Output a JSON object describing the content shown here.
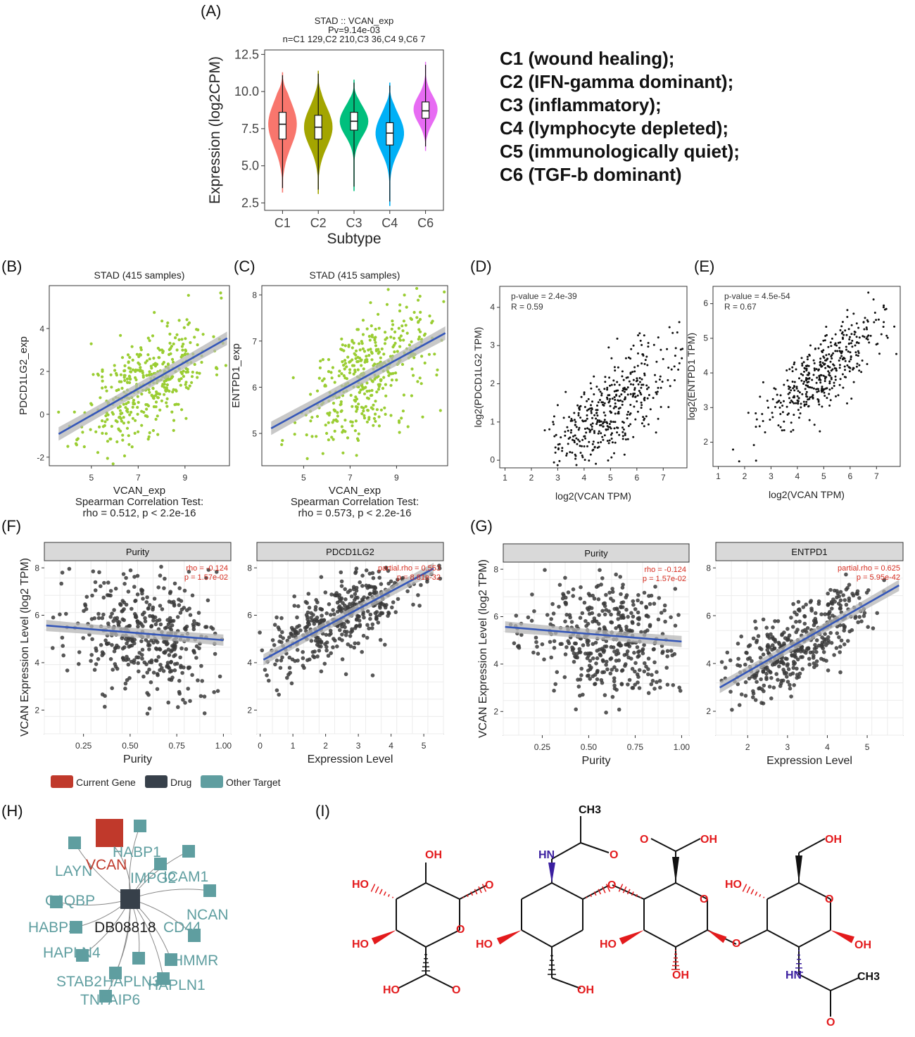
{
  "colors": {
    "violin": [
      "#f8766d",
      "#a3a500",
      "#00bf7d",
      "#00b0f6",
      "#e76bf3"
    ],
    "scatter_green": "#9acd32",
    "fit_line": "#3557b8",
    "ci_band": "#b5b5b5",
    "gray_point": "#3a3a3a",
    "network_current_gene": "#c0392b",
    "network_drug": "#37404a",
    "network_other": "#5f9ea0",
    "chem_red": "#e31a1c",
    "chem_blue": "#3b1fa0"
  },
  "panel_labels": [
    "(A)",
    "(B)",
    "(C)",
    "(D)",
    "(E)",
    "(F)",
    "(G)",
    "(H)",
    "(I)"
  ],
  "subtype_legend": [
    "C1 (wound healing);",
    "C2 (IFN-gamma dominant);",
    "C3 (inflammatory);",
    "C4 (lymphocyte depleted);",
    "C5 (immunologically quiet);",
    "C6 (TGF-b dominant)"
  ],
  "chart_data": [
    {
      "id": "A",
      "type": "violin",
      "title": "STAD :: VCAN_exp",
      "subtitle": [
        "Pv=9.14e-03",
        "n=C1 129,C2 210,C3 36,C4 9,C6 7"
      ],
      "xlabel": "Subtype",
      "ylabel": "Expression (log2CPM)",
      "categories": [
        "C1",
        "C2",
        "C3",
        "C4",
        "C6"
      ],
      "ylim": [
        2.0,
        12.8
      ],
      "yticks": [
        "2.5",
        "5.0",
        "7.5",
        "10.0",
        "12.5"
      ],
      "violins": [
        {
          "min": 3.2,
          "q1": 6.8,
          "median": 7.8,
          "q3": 8.6,
          "max": 11.3,
          "mode": 7.8,
          "width": 0.95
        },
        {
          "min": 3.1,
          "q1": 6.8,
          "median": 7.6,
          "q3": 8.4,
          "max": 11.4,
          "mode": 7.6,
          "width": 0.95
        },
        {
          "min": 3.3,
          "q1": 7.4,
          "median": 8.0,
          "q3": 8.6,
          "max": 10.8,
          "mode": 8.0,
          "width": 0.95
        },
        {
          "min": 2.3,
          "q1": 6.4,
          "median": 7.2,
          "q3": 7.9,
          "max": 10.6,
          "mode": 7.2,
          "width": 0.95
        },
        {
          "min": 6.0,
          "q1": 8.2,
          "median": 8.7,
          "q3": 9.3,
          "max": 12.0,
          "mode": 8.8,
          "width": 0.8
        }
      ]
    },
    {
      "id": "B",
      "type": "scatter",
      "title": "STAD (415 samples)",
      "xlabel": "VCAN_exp",
      "ylabel": "PDCD1LG2_exp",
      "stat_lines": [
        "Spearman Correlation Test:",
        "rho = 0.512, p < 2.2e-16"
      ],
      "xlim": [
        3.2,
        10.9
      ],
      "ylim": [
        -2.4,
        6.0
      ],
      "xticks": [
        "5",
        "7",
        "9"
      ],
      "yticks": [
        "-2",
        "0",
        "2",
        "4"
      ],
      "n": 415,
      "fit": {
        "x0": 3.6,
        "x1": 10.8,
        "slope": 0.62,
        "intercept": -3.15
      },
      "correlation": 0.512
    },
    {
      "id": "C",
      "type": "scatter",
      "title": "STAD (415 samples)",
      "xlabel": "VCAN_exp",
      "ylabel": "ENTPD1_exp",
      "stat_lines": [
        "Spearman Correlation Test:",
        "rho = 0.573, p < 2.2e-16"
      ],
      "xlim": [
        3.2,
        11.2
      ],
      "ylim": [
        4.3,
        8.2
      ],
      "xticks": [
        "5",
        "7",
        "9"
      ],
      "yticks": [
        "5",
        "6",
        "7",
        "8"
      ],
      "n": 415,
      "fit": {
        "x0": 3.6,
        "x1": 11.1,
        "slope": 0.275,
        "intercept": 4.12
      },
      "correlation": 0.573
    },
    {
      "id": "D",
      "type": "scatter",
      "title": "",
      "xlabel": "log2(VCAN TPM)",
      "ylabel": "log2(PDCD1LG2 TPM)",
      "annotations": [
        "p-value = 2.4e-39",
        "R = 0.59"
      ],
      "xlim": [
        0.8,
        7.9
      ],
      "ylim": [
        -0.2,
        4.55
      ],
      "xticks": [
        "1",
        "2",
        "3",
        "4",
        "5",
        "6",
        "7"
      ],
      "yticks": [
        "0",
        "1",
        "2",
        "3",
        "4"
      ],
      "n": 415,
      "correlation": 0.59
    },
    {
      "id": "E",
      "type": "scatter",
      "title": "",
      "xlabel": "log2(VCAN TPM)",
      "ylabel": "log2(ENTPD1 TPM)",
      "annotations": [
        "p-value = 4.5e-54",
        "R = 0.67"
      ],
      "xlim": [
        0.8,
        7.9
      ],
      "ylim": [
        1.3,
        6.5
      ],
      "xticks": [
        "1",
        "2",
        "3",
        "4",
        "5",
        "6",
        "7"
      ],
      "yticks": [
        "2",
        "3",
        "4",
        "5",
        "6"
      ],
      "n": 415,
      "correlation": 0.67
    },
    {
      "id": "F",
      "type": "scatter",
      "ylabel": "VCAN Expression Level (log2 TPM)",
      "facets": [
        {
          "strip": "Purity",
          "xlabel": "Purity",
          "annotations": [
            "rho = -0.124",
            "p = 1.57e-02"
          ],
          "xlim": [
            0.04,
            1.04
          ],
          "ylim": [
            1.0,
            8.3
          ],
          "xticks": [
            "0.25",
            "0.50",
            "0.75",
            "1.00"
          ],
          "yticks": [
            "2",
            "4",
            "6",
            "8"
          ],
          "fit": {
            "x0": 0.05,
            "x1": 1.0,
            "slope": -0.65,
            "intercept": 5.6
          },
          "correlation": -0.124
        },
        {
          "strip": "PDCD1LG2",
          "xlabel": "Expression Level",
          "annotations": [
            "partial.rho = 0.553",
            "p = 8.81e-32"
          ],
          "xlim": [
            -0.1,
            5.6
          ],
          "ylim": [
            1.0,
            8.3
          ],
          "xticks": [
            "0",
            "1",
            "2",
            "3",
            "4",
            "5"
          ],
          "yticks": [
            "2",
            "4",
            "6",
            "8"
          ],
          "fit": {
            "x0": 0.1,
            "x1": 5.3,
            "slope": 0.74,
            "intercept": 4.05
          },
          "correlation": 0.553
        }
      ]
    },
    {
      "id": "G",
      "type": "scatter",
      "ylabel": "VCAN Expression Level (log2 TPM)",
      "facets": [
        {
          "strip": "Purity",
          "xlabel": "Purity",
          "annotations": [
            "rho = -0.124",
            "p = 1.57e-02"
          ],
          "xlim": [
            0.04,
            1.04
          ],
          "ylim": [
            1.0,
            8.3
          ],
          "xticks": [
            "0.25",
            "0.50",
            "0.75",
            "1.00"
          ],
          "yticks": [
            "2",
            "4",
            "6",
            "8"
          ],
          "fit": {
            "x0": 0.05,
            "x1": 1.0,
            "slope": -0.65,
            "intercept": 5.6
          },
          "correlation": -0.124
        },
        {
          "strip": "ENTPD1",
          "xlabel": "Expression Level",
          "annotations": [
            "partial.rho = 0.625",
            "p = 5.95e-42"
          ],
          "xlim": [
            1.2,
            5.9
          ],
          "ylim": [
            1.0,
            8.3
          ],
          "xticks": [
            "2",
            "3",
            "4",
            "5"
          ],
          "yticks": [
            "2",
            "4",
            "6",
            "8"
          ],
          "fit": {
            "x0": 1.3,
            "x1": 5.8,
            "slope": 0.95,
            "intercept": 1.76
          },
          "correlation": 0.625
        }
      ]
    }
  ],
  "network": {
    "legend": [
      {
        "label": "Current Gene",
        "kind": "current"
      },
      {
        "label": "Drug",
        "kind": "drug"
      },
      {
        "label": "Other Target",
        "kind": "other"
      }
    ],
    "drug": "DB08818",
    "current_gene": "VCAN",
    "targets": [
      "HABP1",
      "ICAM1",
      "LAYN",
      "IMPG2",
      "C1QBP",
      "NCAN",
      "HABP2",
      "CD44",
      "HAPLN4",
      "HMMR",
      "STAB2",
      "HAPLN3",
      "HAPLN1",
      "TNFAIP6"
    ]
  },
  "molecule": {
    "labels": [
      "CH3",
      "HN",
      "O",
      "OH",
      "O",
      "OH",
      "OH",
      "HO",
      "O",
      "O",
      "O",
      "HO",
      "OH",
      "HO",
      "HO",
      "O",
      "O",
      "HO",
      "O",
      "O",
      "OH",
      "O",
      "OH",
      "OH",
      "HN",
      "CH3",
      "O",
      "HO",
      "O",
      "OH",
      "O",
      "HO",
      "OH"
    ]
  }
}
